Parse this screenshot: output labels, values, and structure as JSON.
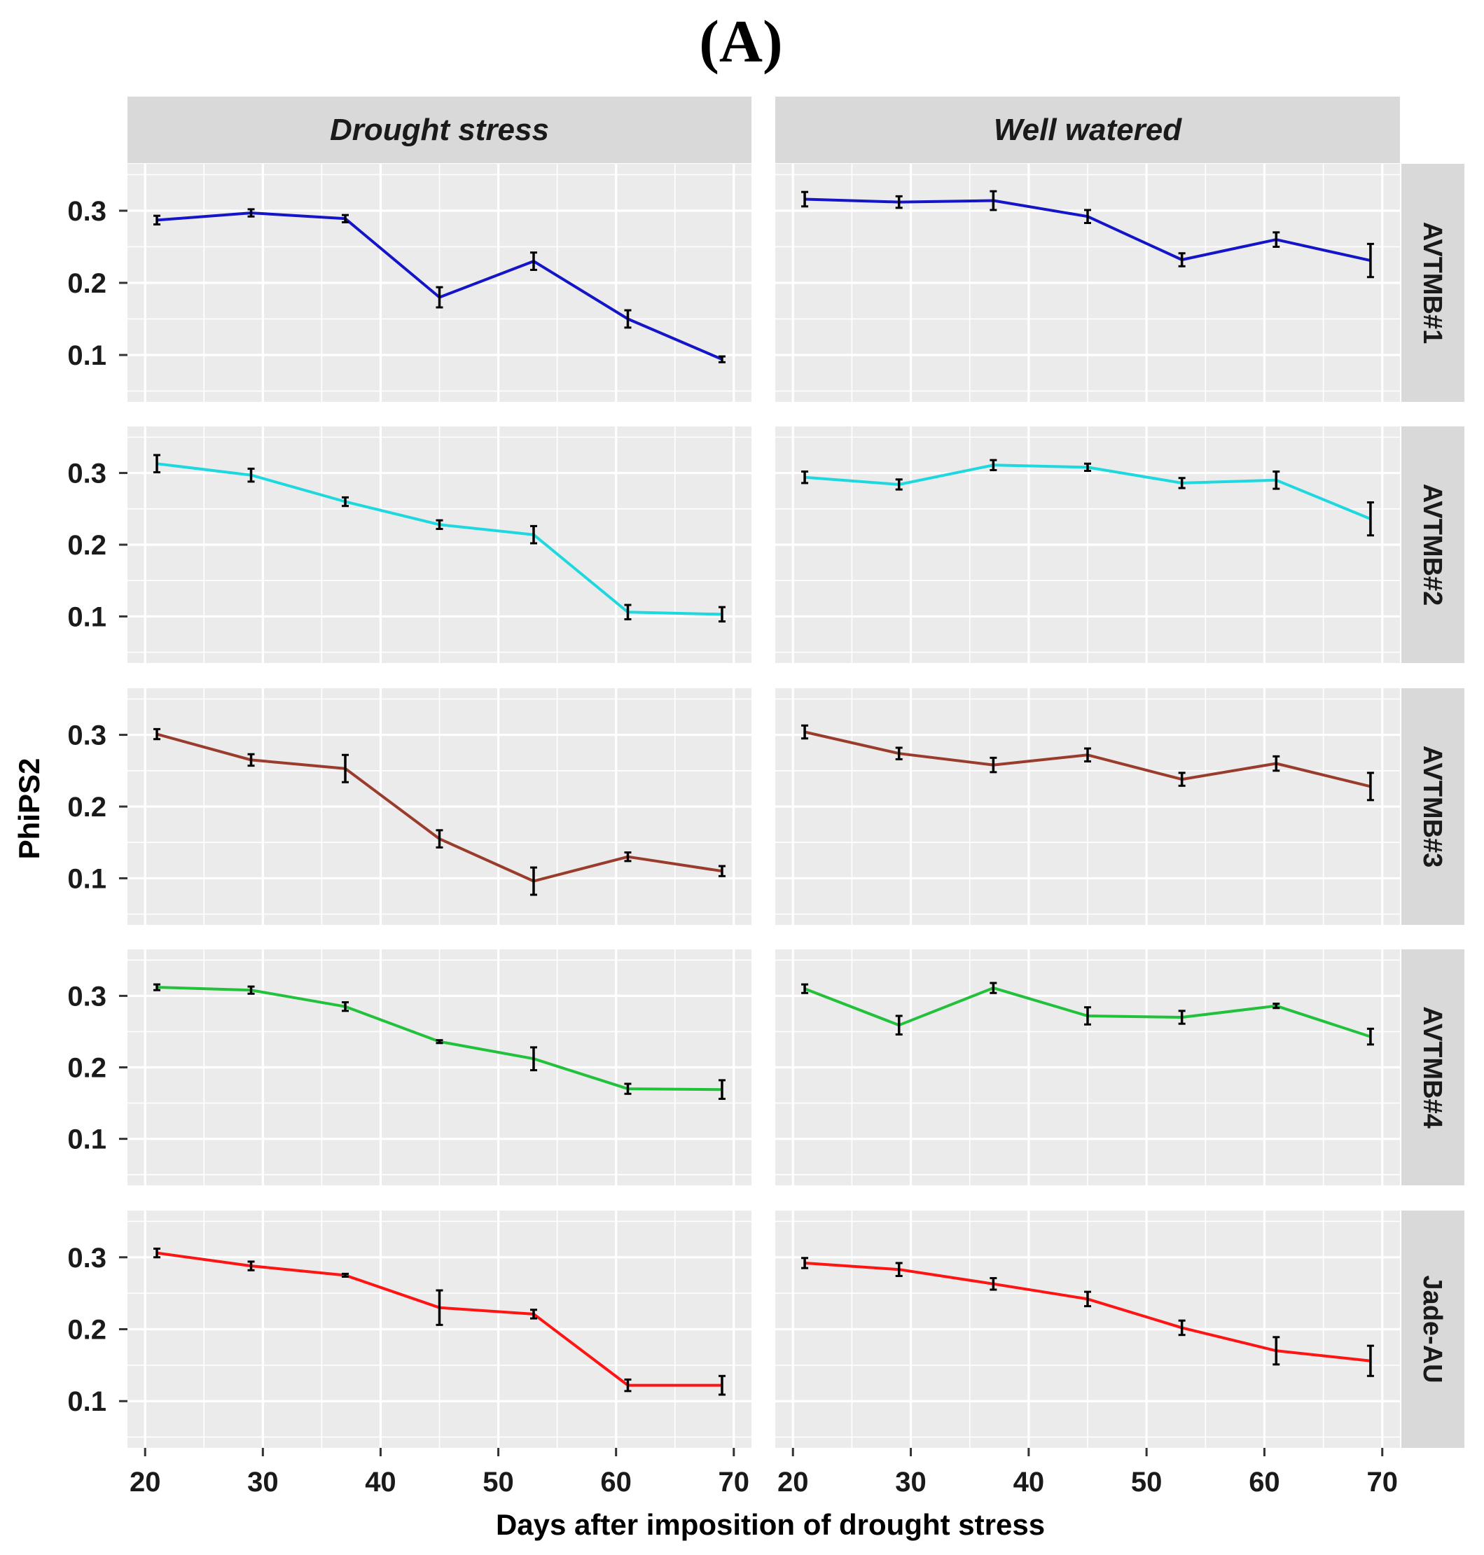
{
  "title": "(A)",
  "chart_data": {
    "type": "line",
    "xlabel": "Days after imposition of drought stress",
    "ylabel": "PhiPS2",
    "xlim": [
      18.5,
      71.5
    ],
    "ylim": [
      0.035,
      0.365
    ],
    "x_ticks": [
      20,
      30,
      40,
      50,
      60,
      70
    ],
    "y_ticks": [
      0.1,
      0.2,
      0.3
    ],
    "x_tick_labels": [
      "20",
      "30",
      "40",
      "50",
      "60",
      "70"
    ],
    "y_tick_labels": [
      "0.1",
      "0.2",
      "0.3"
    ],
    "x": [
      21,
      29,
      37,
      45,
      53,
      61,
      69
    ],
    "columns": [
      "Drought stress",
      "Well watered"
    ],
    "rows": [
      "AVTMB#1",
      "AVTMB#2",
      "AVTMB#3",
      "AVTMB#4",
      "Jade-AU"
    ],
    "row_colors": [
      "#1414c8",
      "#1ed8e0",
      "#9a3c2c",
      "#22c13c",
      "#ff1414"
    ],
    "series": [
      {
        "name": "AVTMB#1",
        "drought": {
          "values": [
            0.287,
            0.297,
            0.289,
            0.18,
            0.23,
            0.15,
            0.094
          ],
          "errors": [
            0.006,
            0.005,
            0.005,
            0.014,
            0.012,
            0.012,
            0.004
          ]
        },
        "watered": {
          "values": [
            0.316,
            0.312,
            0.314,
            0.292,
            0.232,
            0.26,
            0.231
          ],
          "errors": [
            0.01,
            0.008,
            0.013,
            0.009,
            0.009,
            0.01,
            0.023
          ]
        }
      },
      {
        "name": "AVTMB#2",
        "drought": {
          "values": [
            0.313,
            0.297,
            0.26,
            0.228,
            0.214,
            0.106,
            0.103
          ],
          "errors": [
            0.012,
            0.009,
            0.006,
            0.006,
            0.012,
            0.01,
            0.01
          ]
        },
        "watered": {
          "values": [
            0.294,
            0.284,
            0.311,
            0.308,
            0.286,
            0.29,
            0.236
          ],
          "errors": [
            0.008,
            0.007,
            0.007,
            0.005,
            0.007,
            0.012,
            0.023
          ]
        }
      },
      {
        "name": "AVTMB#3",
        "drought": {
          "values": [
            0.301,
            0.265,
            0.253,
            0.155,
            0.096,
            0.13,
            0.11
          ],
          "errors": [
            0.007,
            0.008,
            0.019,
            0.012,
            0.019,
            0.006,
            0.007
          ]
        },
        "watered": {
          "values": [
            0.304,
            0.274,
            0.258,
            0.272,
            0.238,
            0.26,
            0.228
          ],
          "errors": [
            0.009,
            0.008,
            0.01,
            0.009,
            0.009,
            0.01,
            0.019
          ]
        }
      },
      {
        "name": "AVTMB#4",
        "drought": {
          "values": [
            0.312,
            0.308,
            0.285,
            0.236,
            0.212,
            0.17,
            0.169
          ],
          "errors": [
            0.004,
            0.005,
            0.006,
            0.002,
            0.016,
            0.007,
            0.013
          ]
        },
        "watered": {
          "values": [
            0.31,
            0.259,
            0.311,
            0.272,
            0.27,
            0.286,
            0.243
          ],
          "errors": [
            0.006,
            0.013,
            0.007,
            0.012,
            0.009,
            0.003,
            0.011
          ]
        }
      },
      {
        "name": "Jade-AU",
        "drought": {
          "values": [
            0.306,
            0.288,
            0.275,
            0.23,
            0.221,
            0.122,
            0.122
          ],
          "errors": [
            0.006,
            0.006,
            0.002,
            0.024,
            0.006,
            0.008,
            0.013
          ]
        },
        "watered": {
          "values": [
            0.292,
            0.283,
            0.263,
            0.242,
            0.202,
            0.17,
            0.156
          ],
          "errors": [
            0.007,
            0.009,
            0.008,
            0.01,
            0.01,
            0.019,
            0.021
          ]
        }
      }
    ]
  }
}
